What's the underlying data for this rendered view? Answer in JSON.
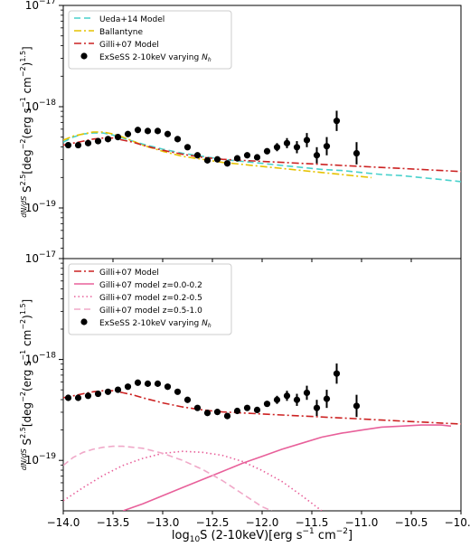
{
  "chart_data": {
    "type": "scatter",
    "ylabel_lead": "dN/dS",
    "ylabel_main": "S^2.5[deg^-2(erg s^-1 cm^-2)^1.5]",
    "xlabel": "log10S (2-10keV)[erg s^-1 cm^-2]",
    "xlim": [
      -14.0,
      -10.0
    ],
    "ylim_log10": [
      -19.5,
      -17.0
    ],
    "log_y": true,
    "x_ticks": [
      "-14.0",
      "-13.5",
      "-13.0",
      "-12.5",
      "-12.0",
      "-11.5",
      "-11.0",
      "-10.5",
      "-10.0"
    ],
    "y_ticks": [
      "10^-17",
      "10^-18",
      "10^-19"
    ],
    "data_points": {
      "name": "ExSeSS 2-10keV varying Nh",
      "x": [
        -13.95,
        -13.85,
        -13.75,
        -13.65,
        -13.55,
        -13.45,
        -13.35,
        -13.25,
        -13.15,
        -13.05,
        -12.95,
        -12.85,
        -12.75,
        -12.65,
        -12.55,
        -12.45,
        -12.35,
        -12.25,
        -12.15,
        -12.05,
        -11.95,
        -11.85,
        -11.75,
        -11.65,
        -11.55,
        -11.45,
        -11.35,
        -11.25,
        -11.05
      ],
      "y_log": [
        -18.38,
        -18.38,
        -18.36,
        -18.34,
        -18.32,
        -18.3,
        -18.27,
        -18.23,
        -18.24,
        -18.24,
        -18.27,
        -18.32,
        -18.4,
        -18.48,
        -18.53,
        -18.52,
        -18.56,
        -18.51,
        -18.48,
        -18.5,
        -18.44,
        -18.4,
        -18.36,
        -18.4,
        -18.33,
        -18.48,
        -18.39,
        -18.14,
        -18.46
      ],
      "err_up": [
        0,
        0,
        0,
        0,
        0,
        0,
        0,
        0,
        0,
        0,
        0,
        0,
        0,
        0,
        0,
        0,
        0,
        0,
        0,
        0,
        0.02,
        0.04,
        0.05,
        0.06,
        0.07,
        0.08,
        0.09,
        0.1,
        0.11
      ],
      "err_down": [
        0,
        0,
        0,
        0,
        0,
        0,
        0,
        0,
        0,
        0,
        0,
        0,
        0,
        0,
        0,
        0,
        0,
        0,
        0,
        0,
        0.02,
        0.04,
        0.05,
        0.06,
        0.07,
        0.08,
        0.09,
        0.1,
        0.11
      ]
    },
    "panels": [
      {
        "legend": [
          "Ueda+14 Model",
          "Ballantyne",
          "Gilli+07 Model",
          "ExSeSS 2-10keV varying Nh"
        ],
        "series": [
          {
            "name": "Ueda+14 Model",
            "color": "#48d1cc",
            "dash": "dashed",
            "x": [
              -14.0,
              -13.9,
              -13.8,
              -13.7,
              -13.6,
              -13.5,
              -13.4,
              -13.3,
              -13.2,
              -13.0,
              -12.8,
              -12.6,
              -12.4,
              -12.2,
              -12.0,
              -11.8,
              -11.6,
              -11.4,
              -11.2,
              -11.0,
              -10.8,
              -10.6,
              -10.4,
              -10.2,
              -10.0
            ],
            "y_log": [
              -18.35,
              -18.3,
              -18.27,
              -18.26,
              -18.26,
              -18.28,
              -18.31,
              -18.34,
              -18.37,
              -18.42,
              -18.46,
              -18.49,
              -18.52,
              -18.54,
              -18.56,
              -18.58,
              -18.6,
              -18.62,
              -18.63,
              -18.65,
              -18.67,
              -18.68,
              -18.7,
              -18.72,
              -18.74
            ]
          },
          {
            "name": "Ballantyne",
            "color": "#e6c200",
            "dash": "dashdot",
            "x": [
              -14.0,
              -13.9,
              -13.8,
              -13.7,
              -13.6,
              -13.5,
              -13.4,
              -13.3,
              -13.2,
              -13.0,
              -12.8,
              -12.6,
              -12.4,
              -12.2,
              -12.0,
              -11.8,
              -11.6,
              -11.4,
              -11.2,
              -11.0,
              -10.9
            ],
            "y_log": [
              -18.33,
              -18.29,
              -18.27,
              -18.25,
              -18.25,
              -18.27,
              -18.3,
              -18.34,
              -18.38,
              -18.44,
              -18.49,
              -18.52,
              -18.55,
              -18.57,
              -18.59,
              -18.61,
              -18.63,
              -18.65,
              -18.67,
              -18.69,
              -18.7
            ]
          },
          {
            "name": "Gilli+07 Model",
            "color": "#cc2222",
            "dash": "dashdot",
            "x": [
              -14.0,
              -13.9,
              -13.8,
              -13.7,
              -13.6,
              -13.5,
              -13.4,
              -13.3,
              -13.2,
              -13.0,
              -12.8,
              -12.6,
              -12.4,
              -12.2,
              -12.0,
              -11.8,
              -11.6,
              -11.4,
              -11.2,
              -11.0,
              -10.8,
              -10.6,
              -10.4,
              -10.2,
              -10.0
            ],
            "y_log": [
              -18.38,
              -18.36,
              -18.34,
              -18.32,
              -18.31,
              -18.31,
              -18.33,
              -18.35,
              -18.38,
              -18.43,
              -18.47,
              -18.5,
              -18.52,
              -18.53,
              -18.54,
              -18.55,
              -18.56,
              -18.57,
              -18.58,
              -18.59,
              -18.6,
              -18.61,
              -18.62,
              -18.63,
              -18.64
            ]
          }
        ]
      },
      {
        "legend": [
          "Gilli+07 Model",
          "Gilli+07 model z=0.0-0.2",
          "Gilli+07 model z=0.2-0.5",
          "Gilli+07 model z=0.5-1.0",
          "ExSeSS 2-10keV varying Nh"
        ],
        "series": [
          {
            "name": "Gilli+07 Model",
            "color": "#cc2222",
            "dash": "dashdot",
            "x": [
              -14.0,
              -13.9,
              -13.8,
              -13.7,
              -13.6,
              -13.5,
              -13.4,
              -13.3,
              -13.2,
              -13.0,
              -12.8,
              -12.6,
              -12.4,
              -12.2,
              -12.0,
              -11.8,
              -11.6,
              -11.4,
              -11.2,
              -11.0,
              -10.8,
              -10.6,
              -10.4,
              -10.2,
              -10.0
            ],
            "y_log": [
              -18.38,
              -18.36,
              -18.34,
              -18.32,
              -18.31,
              -18.31,
              -18.33,
              -18.35,
              -18.38,
              -18.43,
              -18.47,
              -18.5,
              -18.52,
              -18.53,
              -18.54,
              -18.55,
              -18.56,
              -18.57,
              -18.58,
              -18.59,
              -18.6,
              -18.61,
              -18.62,
              -18.63,
              -18.64
            ]
          },
          {
            "name": "Gilli+07 model z=0.0-0.2",
            "color": "#e8609a",
            "dash": "solid",
            "x": [
              -13.4,
              -13.2,
              -13.0,
              -12.8,
              -12.6,
              -12.4,
              -12.2,
              -12.0,
              -11.8,
              -11.6,
              -11.4,
              -11.2,
              -11.0,
              -10.8,
              -10.6,
              -10.4,
              -10.2,
              -10.1
            ],
            "y_log": [
              -19.5,
              -19.43,
              -19.35,
              -19.27,
              -19.19,
              -19.11,
              -19.03,
              -18.96,
              -18.89,
              -18.83,
              -18.77,
              -18.73,
              -18.7,
              -18.67,
              -18.66,
              -18.65,
              -18.65,
              -18.66
            ]
          },
          {
            "name": "Gilli+07 model z=0.2-0.5",
            "color": "#e8609a",
            "dash": "dotted",
            "x": [
              -14.0,
              -13.8,
              -13.6,
              -13.4,
              -13.2,
              -13.0,
              -12.8,
              -12.6,
              -12.4,
              -12.2,
              -12.0,
              -11.8,
              -11.6,
              -11.4
            ],
            "y_log": [
              -19.4,
              -19.27,
              -19.15,
              -19.05,
              -18.98,
              -18.93,
              -18.91,
              -18.92,
              -18.95,
              -19.01,
              -19.1,
              -19.21,
              -19.35,
              -19.5
            ]
          },
          {
            "name": "Gilli+07 model z=0.5-1.0",
            "color": "#f0a8c8",
            "dash": "dashed",
            "x": [
              -14.0,
              -13.9,
              -13.8,
              -13.7,
              -13.6,
              -13.5,
              -13.4,
              -13.3,
              -13.2,
              -13.0,
              -12.8,
              -12.6,
              -12.4,
              -12.2,
              -12.0,
              -11.9
            ],
            "y_log": [
              -19.05,
              -18.97,
              -18.92,
              -18.89,
              -18.87,
              -18.86,
              -18.86,
              -18.87,
              -18.88,
              -18.93,
              -19.0,
              -19.09,
              -19.2,
              -19.33,
              -19.46,
              -19.5
            ]
          }
        ]
      }
    ]
  }
}
